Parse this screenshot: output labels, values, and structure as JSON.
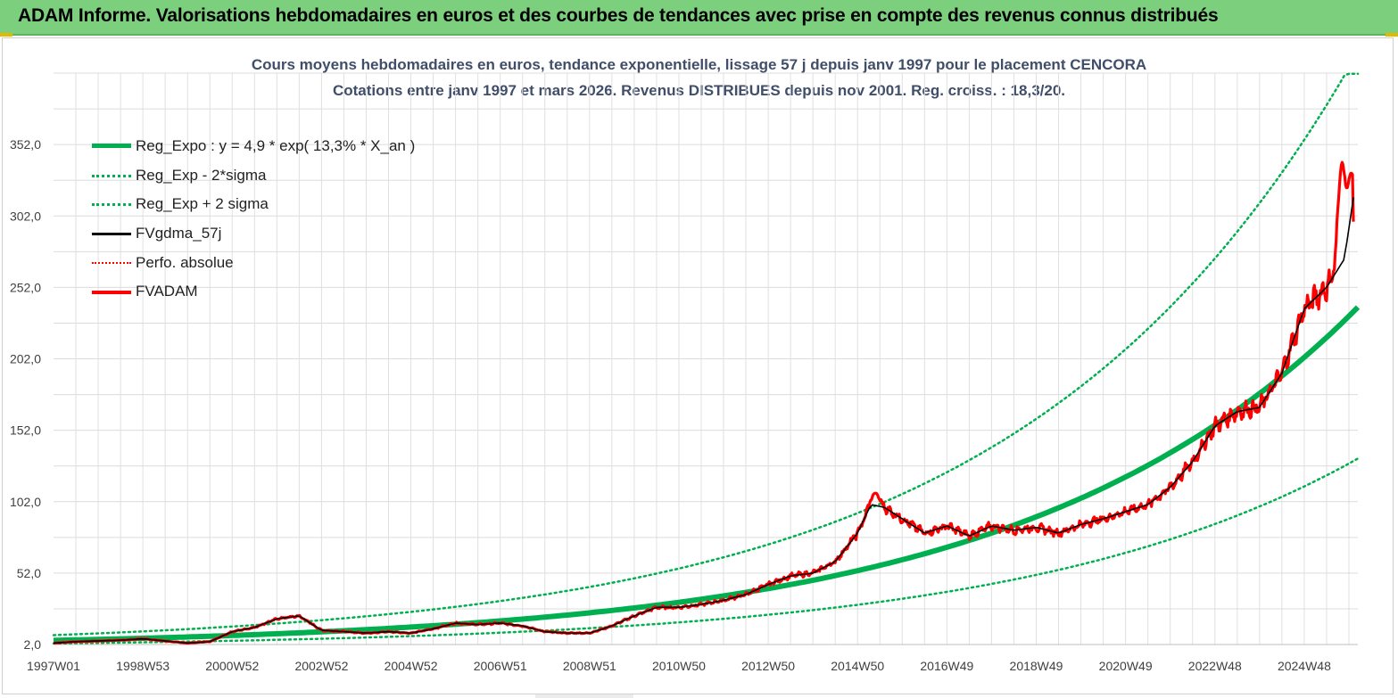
{
  "header": {
    "title": "ADAM Informe. Valorisations hebdomadaires en euros et des courbes de tendances avec prise en compte des revenus connus distribués"
  },
  "colors": {
    "banner": "#7ccf7c",
    "trend": "#00b050",
    "smooth": "#000000",
    "price": "#ff0000",
    "grid": "#d9d9d9",
    "title": "#404e6a"
  },
  "chart_data": {
    "type": "line",
    "title": "Cours moyens hebdomadaires en euros, tendance exponentielle, lissage 57 j depuis janv 1997 pour le placement CENCORA",
    "subtitle": "Cotations entre janv 1997 et mars 2026. Revenus DISTRIBUES depuis nov 2001. Reg. croiss. : 18,3/20.",
    "xlabel": "",
    "ylabel": "",
    "x_unit": "years since 1997W01",
    "xlim": [
      0,
      29.2
    ],
    "ylim": [
      2,
      402
    ],
    "y_ticks": [
      "2,0",
      "52,0",
      "102,0",
      "152,0",
      "202,0",
      "252,0",
      "302,0",
      "352,0"
    ],
    "y_tick_values": [
      2,
      52,
      102,
      152,
      202,
      252,
      302,
      352
    ],
    "x_ticks": [
      "1997W01",
      "1998W53",
      "2000W52",
      "2002W52",
      "2004W52",
      "2006W51",
      "2008W51",
      "2010W50",
      "2012W50",
      "2014W50",
      "2016W49",
      "2018W49",
      "2020W49",
      "2022W48",
      "2024W48"
    ],
    "x_tick_values": [
      0,
      2,
      4,
      6,
      8,
      10,
      12,
      14,
      16,
      18,
      20,
      22,
      24,
      26,
      28
    ],
    "grid": true,
    "legend_position": "top-left",
    "series": [
      {
        "name": "Reg_Expo : y = 4,9 * exp( 13,3% *  X_an )",
        "style": "solid-thick",
        "color": "#00b050",
        "formula": {
          "a": 4.9,
          "rate": 0.133,
          "factor": 1
        }
      },
      {
        "name": "Reg_Exp - 2*sigma",
        "style": "dotted",
        "color": "#00b050",
        "formula": {
          "a": 4.9,
          "rate": 0.133,
          "factor": 0.555
        }
      },
      {
        "name": "Reg_Exp + 2 sigma",
        "style": "dotted",
        "color": "#00b050",
        "formula": {
          "a": 4.9,
          "rate": 0.133,
          "factor": 1.75
        }
      },
      {
        "name": "FVgdma_57j",
        "style": "solid",
        "color": "#000000",
        "x": [
          0,
          0.5,
          1,
          1.5,
          2,
          2.5,
          3,
          3.5,
          4,
          4.5,
          5,
          5.5,
          6,
          6.5,
          7,
          7.5,
          8,
          8.5,
          9,
          9.5,
          10,
          10.5,
          11,
          11.5,
          12,
          12.5,
          13,
          13.5,
          14,
          14.5,
          15,
          15.5,
          16,
          16.5,
          17,
          17.5,
          18,
          18.3,
          18.6,
          19,
          19.5,
          20,
          20.5,
          21,
          21.5,
          22,
          22.5,
          23,
          23.5,
          24,
          24.5,
          25,
          25.5,
          26,
          26.5,
          27,
          27.5,
          28,
          28.5,
          28.9,
          29.1
        ],
        "values": [
          3,
          4,
          4.5,
          5,
          6,
          4.5,
          3,
          4,
          11,
          14,
          20,
          22,
          12,
          11,
          10,
          11,
          10,
          13,
          17,
          16,
          17,
          15,
          11,
          10,
          10,
          15,
          22,
          28,
          28,
          30,
          33,
          37,
          44,
          50,
          52,
          60,
          80,
          100,
          98,
          90,
          80,
          85,
          78,
          85,
          82,
          84,
          80,
          86,
          90,
          95,
          100,
          112,
          130,
          155,
          165,
          168,
          192,
          237,
          252,
          272,
          315
        ]
      },
      {
        "name": "Perfo. absolue",
        "style": "dotted",
        "color": "#ff0000"
      },
      {
        "name": "FVADAM",
        "style": "solid-thick",
        "color": "#ff0000",
        "x": [
          0,
          0.5,
          1,
          1.5,
          2,
          2.5,
          3,
          3.5,
          4,
          4.5,
          5,
          5.5,
          6,
          6.5,
          7,
          7.5,
          8,
          8.5,
          9,
          9.5,
          10,
          10.5,
          11,
          11.5,
          12,
          12.5,
          13,
          13.5,
          14,
          14.5,
          15,
          15.5,
          16,
          16.5,
          17,
          17.5,
          18,
          18.3,
          18.6,
          19,
          19.5,
          20,
          20.5,
          21,
          21.5,
          22,
          22.5,
          23,
          23.5,
          24,
          24.5,
          25,
          25.5,
          26,
          26.5,
          27,
          27.5,
          28,
          28.5,
          28.9,
          29.1
        ],
        "values": [
          3,
          4,
          4.5,
          5,
          6,
          4.5,
          3,
          4,
          11,
          14,
          20,
          22,
          12,
          11,
          10,
          11,
          10,
          13,
          17,
          16,
          17,
          15,
          11,
          10,
          10,
          15,
          22,
          28,
          28,
          30,
          33,
          37,
          44,
          50,
          52,
          60,
          80,
          100,
          98,
          90,
          80,
          85,
          78,
          85,
          82,
          84,
          80,
          86,
          90,
          95,
          100,
          112,
          130,
          155,
          165,
          168,
          192,
          237,
          252,
          272,
          315
        ],
        "peaks": [
          {
            "x": 18.4,
            "value": 108
          },
          {
            "x": 28.85,
            "value": 340
          },
          {
            "x": 29.05,
            "value": 332
          }
        ],
        "last_value": 298
      }
    ]
  }
}
